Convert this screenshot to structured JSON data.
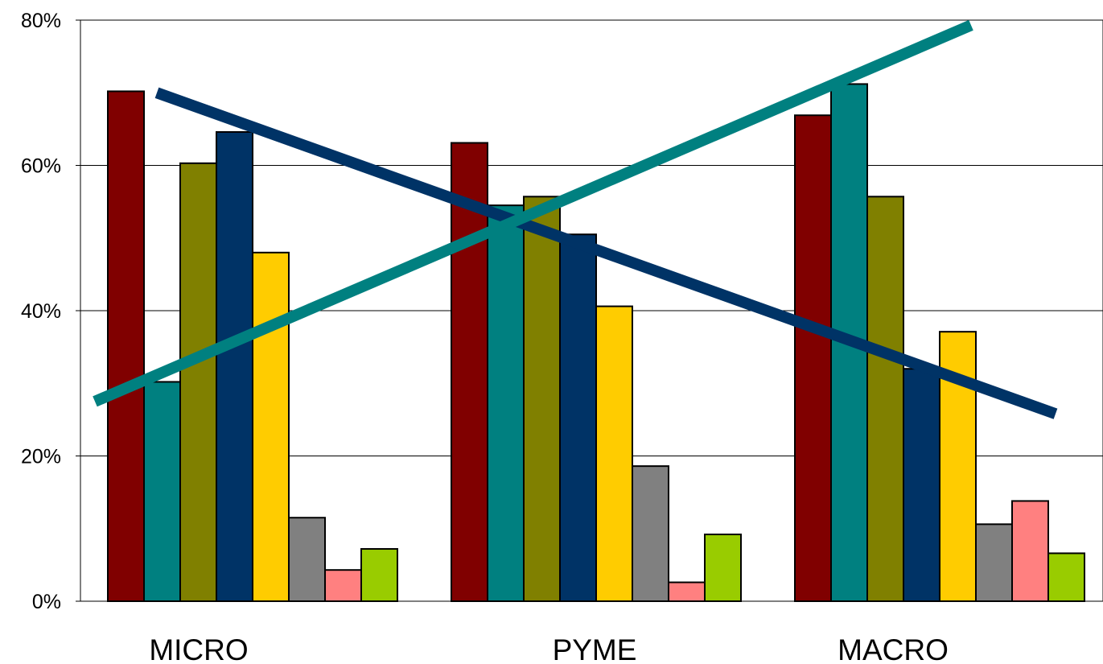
{
  "chart_data": {
    "type": "bar",
    "categories": [
      "MICRO",
      "PYME",
      "MACRO"
    ],
    "ylim": [
      0,
      80
    ],
    "y_ticks": [
      0,
      20,
      40,
      60,
      80
    ],
    "y_tick_labels": [
      "0%",
      "20%",
      "40%",
      "60%",
      "80%"
    ],
    "grid": true,
    "legend": "none",
    "series": [
      {
        "color": "#800000",
        "values": [
          70.2,
          63.1,
          66.9
        ]
      },
      {
        "color": "#008080",
        "values": [
          30.2,
          54.5,
          71.2
        ]
      },
      {
        "color": "#808000",
        "values": [
          60.3,
          55.7,
          55.7
        ]
      },
      {
        "color": "#003366",
        "values": [
          64.6,
          50.5,
          32.0
        ]
      },
      {
        "color": "#FFCC00",
        "values": [
          48.0,
          40.6,
          37.1
        ]
      },
      {
        "color": "#808080",
        "values": [
          11.5,
          18.6,
          10.6
        ]
      },
      {
        "color": "#FF8080",
        "values": [
          4.3,
          2.6,
          13.8
        ]
      },
      {
        "color": "#99CC00",
        "values": [
          7.2,
          9.2,
          6.6
        ]
      }
    ],
    "trend_lines": [
      {
        "color": "#003366",
        "from": 70.0,
        "to": 25.8
      },
      {
        "color": "#008080",
        "from": 27.5,
        "to": 79.3
      }
    ]
  }
}
